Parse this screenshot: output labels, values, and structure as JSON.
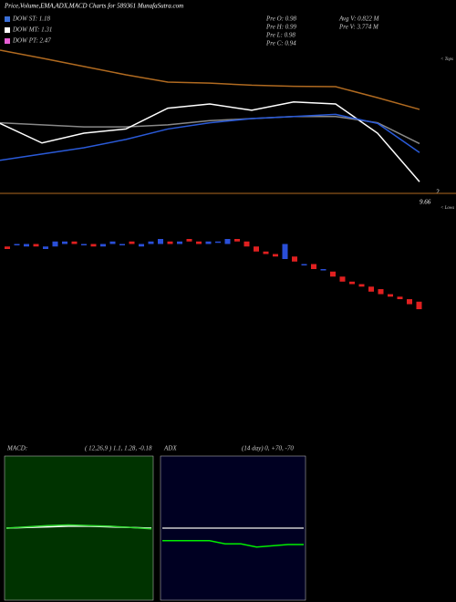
{
  "title": "Price,Volume,EMA,ADX,MACD Charts for 589361 MunafaSutra.com",
  "legend": [
    {
      "label": "DOW ST: 1.18",
      "color": "#3a6fd8"
    },
    {
      "label": "DOW MT: 1.31",
      "color": "#ffffff"
    },
    {
      "label": "DOW PT: 2.47",
      "color": "#e85fd6"
    }
  ],
  "stats": [
    "Pre  O: 0.98",
    "Pre  H: 0.99",
    "Pre  L: 0.98",
    "Pre  C: 0.94",
    "Avg V: 0.822  M",
    "Pre  V: 3.774  M"
  ],
  "top_labels": [
    "< Tops",
    "< Lows",
    "9.66",
    "2"
  ],
  "chart_data": [
    {
      "type": "line",
      "ylim": [
        0.8,
        1.5
      ],
      "series": [
        {
          "color": "#b06a20",
          "values": [
            1.478,
            1.44,
            1.4,
            1.36,
            1.325,
            1.32,
            1.31,
            1.305,
            1.303,
            1.25,
            1.194
          ]
        },
        {
          "color": "#888888",
          "values": [
            1.13,
            1.12,
            1.11,
            1.11,
            1.12,
            1.14,
            1.15,
            1.16,
            1.16,
            1.13,
            1.03
          ]
        },
        {
          "color": "#ffffff",
          "values": [
            1.127,
            1.033,
            1.08,
            1.1,
            1.2,
            1.22,
            1.19,
            1.23,
            1.22,
            1.08,
            0.847
          ]
        },
        {
          "color": "#2a5ad8",
          "values": [
            0.95,
            0.98,
            1.01,
            1.05,
            1.1,
            1.13,
            1.15,
            1.16,
            1.17,
            1.127,
            0.987
          ]
        }
      ]
    },
    {
      "type": "candlestick",
      "ylim": [
        0.9,
        1.3
      ],
      "up_color": "#2a4fd8",
      "down_color": "#e02020",
      "open": [
        1.19,
        1.2,
        1.19,
        1.2,
        1.18,
        1.19,
        1.2,
        1.21,
        1.2,
        1.2,
        1.19,
        1.2,
        1.2,
        1.21,
        1.19,
        1.2,
        1.2,
        1.21,
        1.2,
        1.22,
        1.21,
        1.2,
        1.21,
        1.2,
        1.22,
        1.21,
        1.19,
        1.17,
        1.16,
        1.14,
        1.15,
        1.12,
        1.12,
        1.1,
        1.09,
        1.07,
        1.05,
        1.04,
        1.03,
        1.02,
        1.0,
        0.99,
        0.98,
        0.97
      ],
      "close": [
        1.18,
        1.2,
        1.2,
        1.19,
        1.19,
        1.21,
        1.21,
        1.2,
        1.2,
        1.19,
        1.2,
        1.21,
        1.2,
        1.2,
        1.2,
        1.21,
        1.22,
        1.2,
        1.21,
        1.21,
        1.2,
        1.21,
        1.21,
        1.22,
        1.21,
        1.19,
        1.17,
        1.16,
        1.15,
        1.2,
        1.13,
        1.12,
        1.1,
        1.1,
        1.07,
        1.05,
        1.04,
        1.03,
        1.01,
        1.0,
        0.99,
        0.98,
        0.96,
        0.94
      ]
    },
    {
      "type": "line",
      "title": "MACD:",
      "subtitle": "( 12,26,9 ) 1.1,  1.28,  -0.18",
      "background": "#003300",
      "ylim": [
        -1,
        1
      ],
      "series": [
        {
          "color": "#ffffff",
          "values": [
            0,
            0.01,
            0.02,
            0.03,
            0.03,
            0.02,
            0.01,
            0
          ]
        },
        {
          "color": "#33dd33",
          "values": [
            0,
            0.02,
            0.04,
            0.05,
            0.04,
            0.03,
            0.01,
            -0.01
          ]
        }
      ]
    },
    {
      "type": "line",
      "title": "ADX",
      "subtitle": "(14  day) 0,  +70,  -70",
      "background": "#000022",
      "ylim": [
        -100,
        100
      ],
      "series": [
        {
          "color": "#cccccc",
          "values": [
            0,
            0,
            0,
            0,
            0,
            0,
            0,
            0,
            0,
            0
          ]
        },
        {
          "color": "#00ee00",
          "values": [
            -20,
            -20,
            -20,
            -20,
            -25,
            -25,
            -30,
            -28,
            -26,
            -26
          ]
        }
      ]
    }
  ]
}
